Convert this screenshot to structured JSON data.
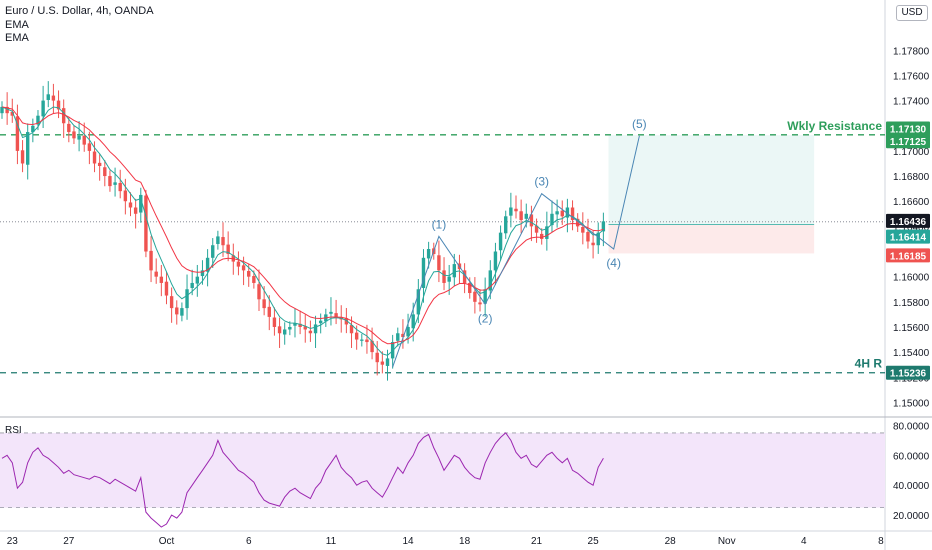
{
  "header": {
    "title": "Euro / U.S. Dollar, 4h, OANDA",
    "indicator_1": "EMA",
    "indicator_2": "EMA",
    "currency_button": "USD"
  },
  "colors": {
    "bull": "#26a69a",
    "bear": "#ef5350",
    "ema_fast": "#26a69a",
    "ema_slow": "#f23645",
    "rsi_line": "#9c27b0",
    "rsi_band": "#f3e5fa",
    "resistance": "#2e9e5b",
    "support": "#1e7a6e",
    "wave": "#4a86b4",
    "current_price_bg": "#131722"
  },
  "chart_data": [
    {
      "type": "candlestick",
      "price_scale": {
        "ylim": [
          1.149,
          1.182
        ],
        "ticks": [
          "1.17800",
          "1.17600",
          "1.17400",
          "1.17200",
          "1.17000",
          "1.16800",
          "1.16600",
          "1.16400",
          "1.16200",
          "1.16000",
          "1.15800",
          "1.15600",
          "1.15400",
          "1.15200",
          "1.15000"
        ]
      },
      "x_axis": {
        "ticks": [
          {
            "i": 2,
            "label": "23"
          },
          {
            "i": 13,
            "label": "27"
          },
          {
            "i": 32,
            "label": "Oct"
          },
          {
            "i": 48,
            "label": "6"
          },
          {
            "i": 64,
            "label": "11"
          },
          {
            "i": 79,
            "label": "14"
          },
          {
            "i": 90,
            "label": "18"
          },
          {
            "i": 104,
            "label": "21"
          },
          {
            "i": 115,
            "label": "25"
          },
          {
            "i": 130,
            "label": "28"
          },
          {
            "i": 141,
            "label": "Nov"
          },
          {
            "i": 156,
            "label": "4"
          },
          {
            "i": 171,
            "label": "8"
          }
        ]
      },
      "closes": [
        1.1735,
        1.173,
        1.1728,
        1.17,
        1.169,
        1.1715,
        1.172,
        1.1728,
        1.174,
        1.1745,
        1.174,
        1.1733,
        1.1722,
        1.1715,
        1.171,
        1.1712,
        1.1705,
        1.17,
        1.169,
        1.1688,
        1.168,
        1.1672,
        1.1675,
        1.1668,
        1.166,
        1.1655,
        1.165,
        1.1665,
        1.162,
        1.1605,
        1.16,
        1.1595,
        1.1585,
        1.1575,
        1.157,
        1.1575,
        1.159,
        1.1595,
        1.16,
        1.1605,
        1.1615,
        1.1625,
        1.1632,
        1.1625,
        1.1618,
        1.1612,
        1.1608,
        1.1605,
        1.16,
        1.1595,
        1.1582,
        1.1575,
        1.1568,
        1.156,
        1.1555,
        1.1558,
        1.156,
        1.1563,
        1.156,
        1.1558,
        1.1555,
        1.1562,
        1.1565,
        1.157,
        1.1572,
        1.1568,
        1.1566,
        1.1562,
        1.1555,
        1.155,
        1.155,
        1.1548,
        1.154,
        1.1532,
        1.153,
        1.1535,
        1.1548,
        1.1555,
        1.1552,
        1.156,
        1.157,
        1.159,
        1.1615,
        1.1622,
        1.1618,
        1.1605,
        1.1595,
        1.16,
        1.161,
        1.1606,
        1.1595,
        1.1587,
        1.158,
        1.1578,
        1.159,
        1.1605,
        1.162,
        1.1635,
        1.1648,
        1.1655,
        1.1652,
        1.1645,
        1.165,
        1.164,
        1.1635,
        1.163,
        1.164,
        1.165,
        1.1652,
        1.1648,
        1.1655,
        1.1645,
        1.164,
        1.1635,
        1.1628,
        1.1625,
        1.1635,
        1.1644
      ],
      "last_index": 117,
      "ema_fast_label": "EMA",
      "ema_slow_label": "EMA",
      "price_labels": [
        {
          "price": 1.1713,
          "text": "1.17130",
          "bg": "#2e9e5b"
        },
        {
          "price": 1.17125,
          "text": "1.17125",
          "bg": "#2e9e5b"
        },
        {
          "price": 1.16436,
          "text": "1.16436",
          "bg": "#131722"
        },
        {
          "price": 1.16414,
          "text": "1.16414",
          "bg": "#26a69a"
        },
        {
          "price": 1.16185,
          "text": "1.16185",
          "bg": "#ef5350"
        },
        {
          "price": 1.15236,
          "text": "1.15236",
          "bg": "#1e7a6e"
        }
      ],
      "levels": [
        {
          "price": 1.17128,
          "label": "Wkly Resistance",
          "color": "#2e9e5b"
        },
        {
          "price": 1.15236,
          "label": "4H R",
          "color": "#1e7a6e"
        }
      ],
      "position": {
        "from_i": 118,
        "to_i": 158,
        "entry": 1.16414,
        "target": 1.17125,
        "stop": 1.16185
      },
      "waves": [
        {
          "label": "(1)",
          "i": 85,
          "price": 1.1632,
          "label_pos": "above"
        },
        {
          "label": "(2)",
          "i": 94,
          "price": 1.1578,
          "label_pos": "below"
        },
        {
          "label": "(3)",
          "i": 105,
          "price": 1.1666,
          "label_pos": "above"
        },
        {
          "label": "(4)",
          "i": 119,
          "price": 1.1622,
          "label_pos": "below"
        },
        {
          "label": "(5)",
          "i": 124,
          "price": 1.1712,
          "label_pos": "above"
        }
      ],
      "wave_start": {
        "i": 76,
        "price": 1.1528
      }
    },
    {
      "type": "line",
      "name": "RSI",
      "ylim": [
        10,
        85
      ],
      "ticks": [
        "80.0000",
        "60.0000",
        "40.0000",
        "20.0000"
      ],
      "band": [
        25,
        75
      ],
      "values": [
        58,
        60,
        55,
        38,
        42,
        55,
        62,
        65,
        60,
        58,
        55,
        52,
        48,
        50,
        47,
        46,
        45,
        44,
        46,
        45,
        43,
        41,
        44,
        42,
        40,
        38,
        36,
        45,
        22,
        18,
        15,
        12,
        14,
        20,
        18,
        22,
        35,
        40,
        45,
        50,
        55,
        60,
        70,
        62,
        58,
        54,
        50,
        48,
        45,
        42,
        35,
        30,
        28,
        27,
        26,
        32,
        36,
        38,
        35,
        33,
        31,
        38,
        42,
        50,
        55,
        60,
        52,
        48,
        45,
        40,
        42,
        43,
        38,
        35,
        32,
        38,
        45,
        52,
        48,
        55,
        60,
        68,
        72,
        74,
        65,
        58,
        50,
        55,
        60,
        58,
        52,
        48,
        45,
        44,
        55,
        62,
        68,
        72,
        75,
        70,
        62,
        58,
        60,
        54,
        52,
        56,
        60,
        62,
        58,
        55,
        58,
        50,
        48,
        45,
        42,
        40,
        52,
        58
      ]
    }
  ]
}
